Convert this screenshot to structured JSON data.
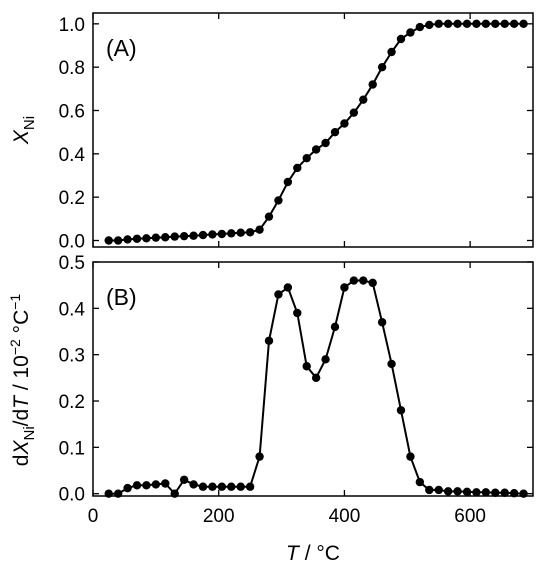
{
  "chart_data": [
    {
      "type": "line",
      "panel_label": "(A)",
      "ylabel": "X_Ni",
      "ylabel_parts": {
        "main": "X",
        "sub": "Ni"
      },
      "xlim": [
        0,
        700
      ],
      "ylim": [
        -0.03,
        1.05
      ],
      "xticks": [
        0,
        200,
        400,
        600
      ],
      "yticks": [
        0.0,
        0.2,
        0.4,
        0.6,
        0.8,
        1.0
      ],
      "ytick_labels": [
        "0.0",
        "0.2",
        "0.4",
        "0.6",
        "0.8",
        "1.0"
      ],
      "show_xtick_labels": false,
      "series": [
        {
          "x": [
            25,
            40,
            55,
            70,
            85,
            100,
            115,
            130,
            145,
            160,
            175,
            190,
            205,
            220,
            235,
            250,
            265,
            280,
            295,
            310,
            325,
            340,
            355,
            370,
            385,
            400,
            415,
            430,
            445,
            460,
            475,
            490,
            505,
            520,
            535,
            550,
            565,
            580,
            595,
            610,
            625,
            640,
            655,
            670,
            685
          ],
          "y": [
            0.0,
            0.0,
            0.005,
            0.008,
            0.01,
            0.013,
            0.015,
            0.018,
            0.02,
            0.022,
            0.025,
            0.028,
            0.03,
            0.033,
            0.036,
            0.038,
            0.05,
            0.11,
            0.185,
            0.27,
            0.335,
            0.38,
            0.42,
            0.45,
            0.5,
            0.54,
            0.59,
            0.65,
            0.72,
            0.8,
            0.87,
            0.93,
            0.96,
            0.985,
            0.995,
            1.0,
            1.0,
            1.0,
            1.0,
            1.0,
            1.0,
            1.0,
            1.0,
            1.0,
            1.0
          ]
        }
      ]
    },
    {
      "type": "line",
      "panel_label": "(B)",
      "ylabel_parts": {
        "d1": "d",
        "main": "X",
        "sub": "Ni",
        "mid": "/d",
        "var": "T",
        "unit": " / 10",
        "exp": "−2",
        "unit2": " °C",
        "exp2": "−1"
      },
      "xlabel_parts": {
        "var": "T",
        "unit": " / °C"
      },
      "xlim": [
        0,
        700
      ],
      "ylim": [
        -0.005,
        0.5
      ],
      "xticks": [
        0,
        200,
        400,
        600
      ],
      "xtick_labels": [
        "0",
        "200",
        "400",
        "600"
      ],
      "yticks": [
        0.0,
        0.1,
        0.2,
        0.3,
        0.4,
        0.5
      ],
      "ytick_labels": [
        "0.0",
        "0.1",
        "0.2",
        "0.3",
        "0.4",
        "0.5"
      ],
      "series": [
        {
          "x": [
            25,
            40,
            55,
            70,
            85,
            100,
            115,
            130,
            145,
            160,
            175,
            190,
            205,
            220,
            235,
            250,
            265,
            280,
            295,
            310,
            325,
            340,
            355,
            370,
            385,
            400,
            415,
            430,
            445,
            460,
            475,
            490,
            505,
            520,
            535,
            550,
            565,
            580,
            595,
            610,
            625,
            640,
            655,
            670,
            685
          ],
          "y": [
            0.0,
            0.0,
            0.012,
            0.018,
            0.018,
            0.02,
            0.022,
            0.0,
            0.03,
            0.02,
            0.015,
            0.015,
            0.015,
            0.015,
            0.015,
            0.015,
            0.08,
            0.33,
            0.43,
            0.445,
            0.39,
            0.275,
            0.25,
            0.29,
            0.36,
            0.445,
            0.46,
            0.46,
            0.455,
            0.37,
            0.28,
            0.18,
            0.08,
            0.025,
            0.008,
            0.008,
            0.005,
            0.005,
            0.004,
            0.003,
            0.003,
            0.002,
            0.002,
            0.001,
            0.0
          ]
        }
      ]
    }
  ]
}
